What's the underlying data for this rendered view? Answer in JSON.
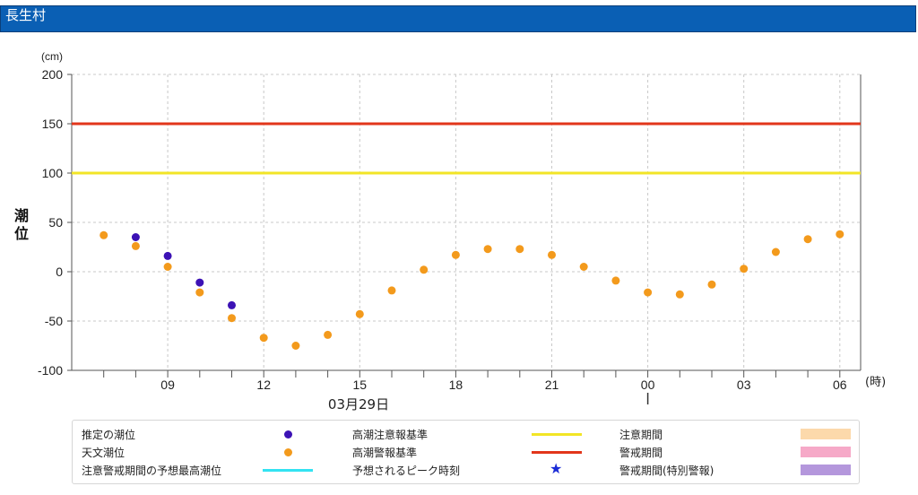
{
  "header": {
    "title": "長生村"
  },
  "chart_data": {
    "type": "scatter",
    "title": "長生村",
    "unit_label": "(cm)",
    "ylabel": "潮位",
    "xlabel_unit": "(時)",
    "date_label": "03月29日",
    "ylim": [
      -100,
      200
    ],
    "y_ticks": [
      200,
      150,
      100,
      50,
      0,
      -50,
      -100
    ],
    "x_hours": [
      7,
      8,
      9,
      10,
      11,
      12,
      13,
      14,
      15,
      16,
      17,
      18,
      19,
      20,
      21,
      22,
      23,
      24,
      25,
      26,
      27,
      28,
      29,
      30
    ],
    "x_tick_labels": [
      {
        "hour": 9,
        "label": "09"
      },
      {
        "hour": 12,
        "label": "12"
      },
      {
        "hour": 15,
        "label": "15"
      },
      {
        "hour": 18,
        "label": "18"
      },
      {
        "hour": 21,
        "label": "21"
      },
      {
        "hour": 24,
        "label": "00"
      },
      {
        "hour": 27,
        "label": "03"
      },
      {
        "hour": 30,
        "label": "06"
      }
    ],
    "reference_lines": [
      {
        "name": "高潮警報基準",
        "value": 150,
        "color": "#e2361b"
      },
      {
        "name": "高潮注意報基準",
        "value": 100,
        "color": "#f2e526"
      }
    ],
    "series": [
      {
        "name": "推定の潮位",
        "color": "#3c12b5",
        "points": [
          [
            8,
            35
          ],
          [
            9,
            16
          ],
          [
            10,
            -11
          ],
          [
            11,
            -34
          ]
        ]
      },
      {
        "name": "天文潮位",
        "color": "#f39a1c",
        "points": [
          [
            7,
            37
          ],
          [
            8,
            26
          ],
          [
            9,
            5
          ],
          [
            10,
            -21
          ],
          [
            11,
            -47
          ],
          [
            12,
            -67
          ],
          [
            13,
            -75
          ],
          [
            14,
            -64
          ],
          [
            15,
            -43
          ],
          [
            16,
            -19
          ],
          [
            17,
            2
          ],
          [
            18,
            17
          ],
          [
            19,
            23
          ],
          [
            20,
            23
          ],
          [
            21,
            17
          ],
          [
            22,
            5
          ],
          [
            23,
            -9
          ],
          [
            24,
            -21
          ],
          [
            25,
            -23
          ],
          [
            26,
            -13
          ],
          [
            27,
            3
          ],
          [
            28,
            20
          ],
          [
            29,
            33
          ],
          [
            30,
            38
          ]
        ]
      }
    ],
    "grid": true
  },
  "legend": {
    "items": [
      {
        "label": "推定の潮位",
        "kind": "dot",
        "color": "#3c12b5"
      },
      {
        "label": "天文潮位",
        "kind": "dot",
        "color": "#f39a1c"
      },
      {
        "label": "注意警戒期間の予想最高潮位",
        "kind": "line",
        "color": "#33e3f2"
      },
      {
        "label": "高潮注意報基準",
        "kind": "line",
        "color": "#f2e526"
      },
      {
        "label": "高潮警報基準",
        "kind": "line",
        "color": "#e2361b"
      },
      {
        "label": "予想されるピーク時刻",
        "kind": "star",
        "color": "#1a2bd6",
        "glyph": "★"
      },
      {
        "label": "注意期間",
        "kind": "box",
        "color": "#fcd9ab"
      },
      {
        "label": "警戒期間",
        "kind": "box",
        "color": "#f6a9c8"
      },
      {
        "label": "警戒期間(特別警報)",
        "kind": "box",
        "color": "#b497dc"
      }
    ]
  }
}
